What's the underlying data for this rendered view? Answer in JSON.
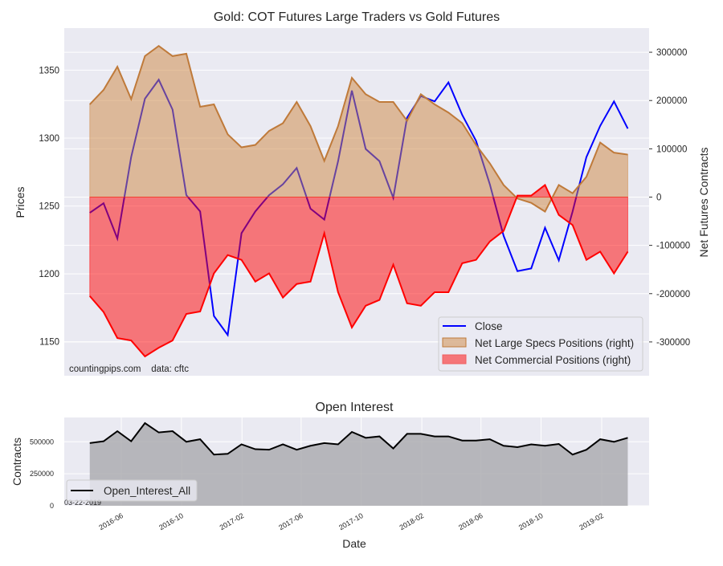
{
  "chart_data": [
    {
      "type": "line",
      "title": "Gold: COT Futures Large Traders vs Gold Futures",
      "xlabel": "",
      "ylabel": "Prices",
      "ylabel_right": "Net Futures Contracts",
      "start_date": "2016-03-29",
      "step_days": 28,
      "ylim": [
        1125,
        1381
      ],
      "ylim_right": [
        -370000,
        350000
      ],
      "yticks": [
        1150,
        1200,
        1250,
        1300,
        1350
      ],
      "yticks_right": [
        -300000,
        -200000,
        -100000,
        0,
        100000,
        200000,
        300000
      ],
      "grid": true,
      "legend_position": "lower-right",
      "annotation": "countingpips.com    data: cftc",
      "series": [
        {
          "name": "Close",
          "axis": "left",
          "color": "#0000ff",
          "values": [
            1245,
            1252,
            1226,
            1286,
            1329,
            1343,
            1321,
            1258,
            1246,
            1169,
            1155,
            1230,
            1246,
            1258,
            1266,
            1278,
            1248,
            1240,
            1283,
            1335,
            1292,
            1283,
            1256,
            1315,
            1331,
            1327,
            1341,
            1317,
            1298,
            1266,
            1228,
            1202,
            1204,
            1234,
            1210,
            1246,
            1286,
            1309,
            1327,
            1307
          ]
        },
        {
          "name": "Net Large Specs Positions (right)",
          "axis": "right",
          "color": "#bf7a3a",
          "fill": "#cd853f",
          "values": [
            192000,
            222000,
            270000,
            203000,
            292000,
            313000,
            292000,
            297000,
            187000,
            192000,
            130000,
            103000,
            108000,
            137000,
            153000,
            197000,
            147000,
            75000,
            147000,
            247000,
            213000,
            197000,
            197000,
            158000,
            213000,
            192000,
            175000,
            153000,
            108000,
            70000,
            25000,
            -3000,
            -12000,
            -30000,
            25000,
            8000,
            42000,
            113000,
            92000,
            88000
          ]
        },
        {
          "name": "Net Commercial Positions (right)",
          "axis": "right",
          "color": "#ff0000",
          "fill": "#ff0000",
          "values": [
            -205000,
            -238000,
            -292000,
            -297000,
            -330000,
            -312000,
            -297000,
            -242000,
            -237000,
            -158000,
            -120000,
            -130000,
            -175000,
            -158000,
            -208000,
            -180000,
            -175000,
            -75000,
            -197000,
            -270000,
            -225000,
            -213000,
            -140000,
            -220000,
            -225000,
            -197000,
            -197000,
            -137000,
            -130000,
            -92000,
            -70000,
            3000,
            3000,
            25000,
            -37000,
            -58000,
            -130000,
            -113000,
            -158000,
            -113000
          ]
        }
      ]
    },
    {
      "type": "area",
      "title": "Open Interest",
      "xlabel": "Date",
      "ylabel": "Contracts",
      "start_date": "2016-03-29",
      "step_days": 28,
      "ylim": [
        0,
        690000
      ],
      "yticks": [
        0,
        250000,
        500000
      ],
      "xticks": [
        "2016-06",
        "2016-10",
        "2017-02",
        "2017-06",
        "2017-10",
        "2018-02",
        "2018-06",
        "2018-10",
        "2019-02"
      ],
      "grid": true,
      "legend_position": "lower-left",
      "annotation": "03-22-2019",
      "series": [
        {
          "name": "Open_Interest_All",
          "color": "#000000",
          "fill": "#a9a9ad",
          "values": [
            490000,
            504000,
            583000,
            504000,
            646000,
            573000,
            583000,
            500000,
            520000,
            400000,
            406000,
            480000,
            442000,
            438000,
            480000,
            438000,
            469000,
            490000,
            480000,
            577000,
            531000,
            542000,
            448000,
            562000,
            562000,
            542000,
            542000,
            510000,
            510000,
            520000,
            469000,
            458000,
            480000,
            469000,
            483000,
            400000,
            438000,
            520000,
            500000,
            531000
          ]
        }
      ]
    }
  ]
}
